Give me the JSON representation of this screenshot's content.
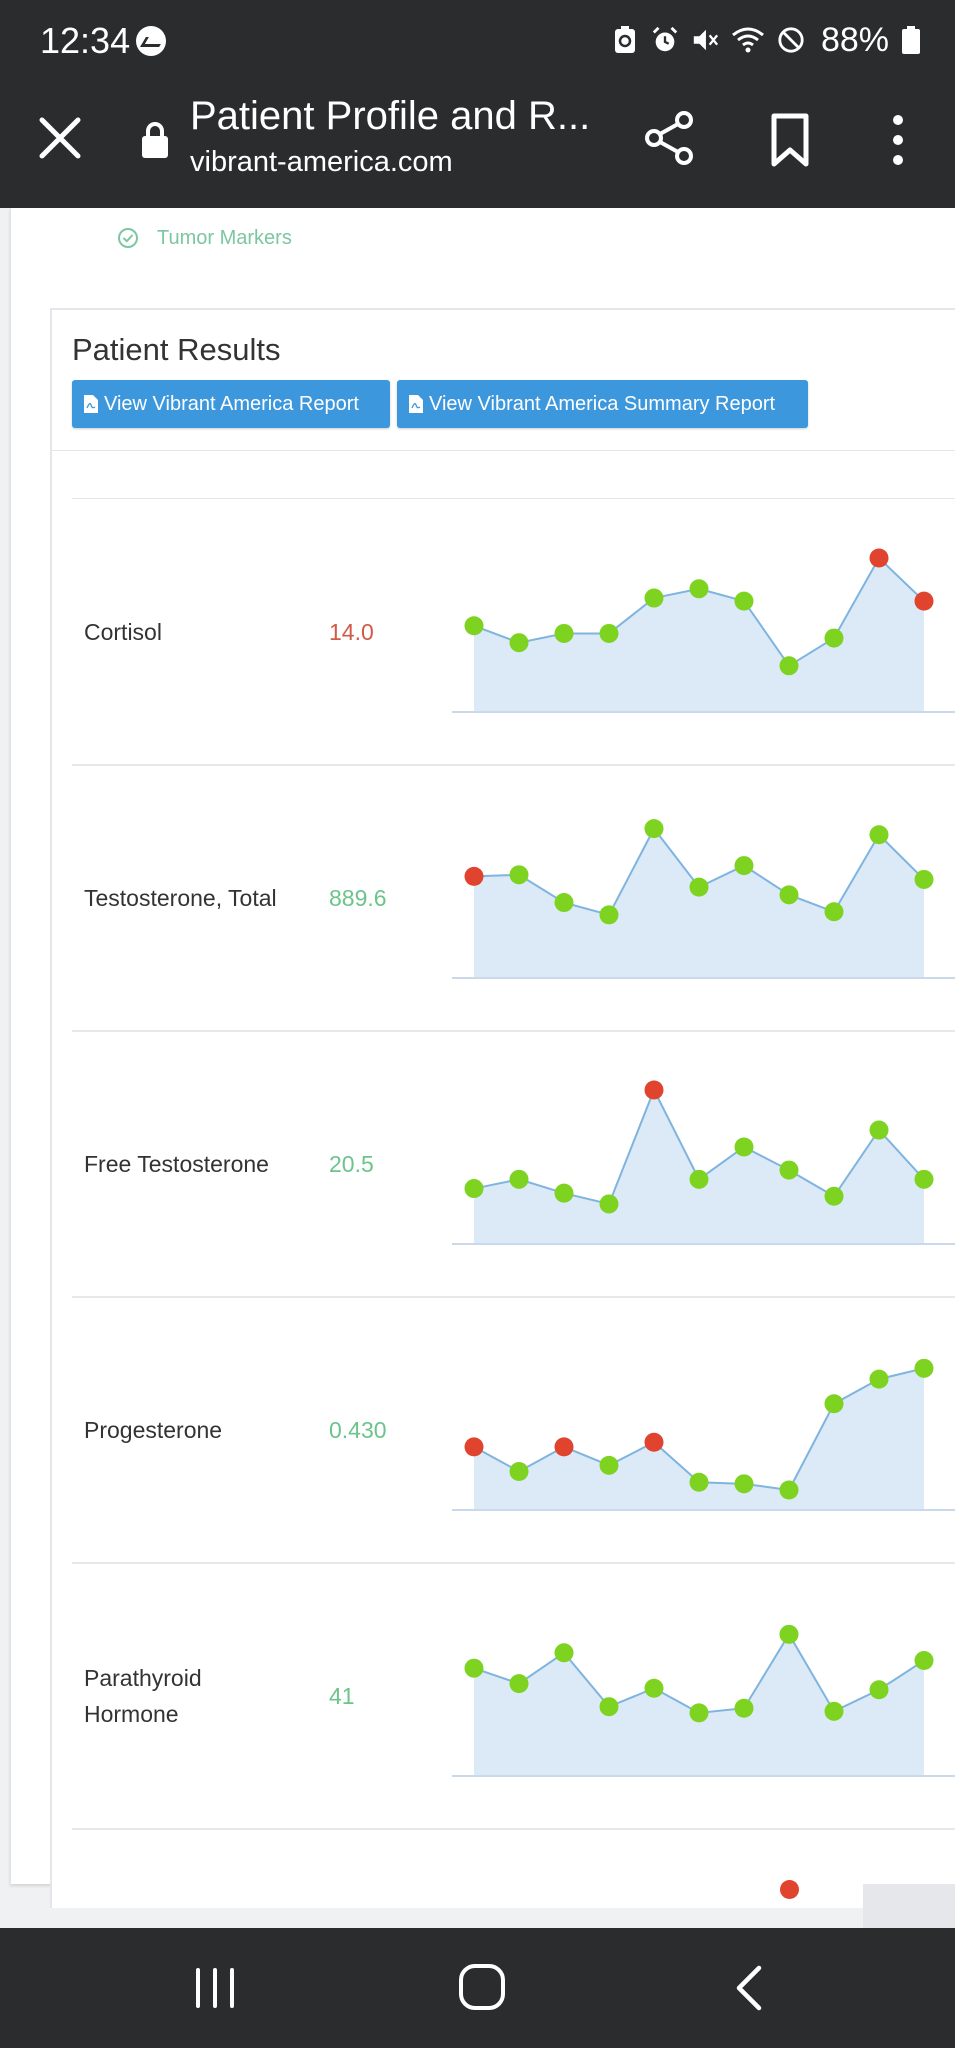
{
  "status_bar": {
    "time": "12:34",
    "battery": "88%",
    "icons": [
      "messenger-icon",
      "battery-saver-icon",
      "alarm-icon",
      "mute-icon",
      "wifi-icon",
      "dnd-icon",
      "battery-icon"
    ]
  },
  "browser": {
    "title": "Patient Profile and R...",
    "domain": "vibrant-america.com"
  },
  "page": {
    "tumor_markers": "Tumor Markers",
    "results_title": "Patient Results",
    "report_button": "View Vibrant America Report",
    "summary_button": "View Vibrant America Summary Report"
  },
  "colors": {
    "normal": "#7ed321",
    "abnormal": "#e0432e",
    "value_normal": "#6cc48b",
    "value_abnormal": "#d05a47",
    "line": "#7fb4de",
    "fill": "#dceaf8",
    "button": "#3c97dd"
  },
  "results": [
    {
      "name": "Cortisol",
      "value": "14.0",
      "status": "abnormal",
      "points": [
        0.56,
        0.45,
        0.51,
        0.51,
        0.74,
        0.8,
        0.72,
        0.3,
        0.48,
        1.0,
        0.72
      ],
      "flags": [
        0,
        0,
        0,
        0,
        0,
        0,
        0,
        0,
        0,
        1,
        1
      ]
    },
    {
      "name": "Testosterone, Total",
      "value": "889.6",
      "status": "normal",
      "points": [
        0.66,
        0.67,
        0.49,
        0.41,
        0.97,
        0.59,
        0.73,
        0.54,
        0.43,
        0.93,
        0.64
      ],
      "flags": [
        1,
        0,
        0,
        0,
        0,
        0,
        0,
        0,
        0,
        0,
        0
      ]
    },
    {
      "name": "Free Testosterone",
      "value": "20.5",
      "status": "normal",
      "points": [
        0.36,
        0.42,
        0.33,
        0.26,
        1.0,
        0.42,
        0.63,
        0.48,
        0.31,
        0.74,
        0.42
      ],
      "flags": [
        0,
        0,
        0,
        0,
        1,
        0,
        0,
        0,
        0,
        0,
        0
      ]
    },
    {
      "name": "Progesterone",
      "value": "0.430",
      "status": "normal",
      "points": [
        0.41,
        0.25,
        0.41,
        0.29,
        0.44,
        0.18,
        0.17,
        0.13,
        0.69,
        0.85,
        0.92
      ],
      "flags": [
        1,
        0,
        1,
        0,
        1,
        0,
        0,
        0,
        0,
        0,
        0
      ]
    },
    {
      "name": "Parathyroid Hormone",
      "value": "41",
      "status": "normal",
      "points": [
        0.7,
        0.6,
        0.8,
        0.45,
        0.57,
        0.41,
        0.44,
        0.92,
        0.42,
        0.56,
        0.75
      ],
      "flags": [
        0,
        0,
        0,
        0,
        0,
        0,
        0,
        0,
        0,
        0,
        0
      ]
    }
  ]
}
